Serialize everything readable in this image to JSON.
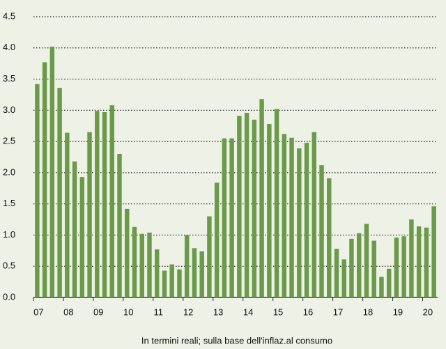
{
  "chart_data": {
    "type": "bar",
    "caption": "In termini reali; sulla base dell'inflaz.al consumo",
    "categories": [
      "07",
      null,
      null,
      null,
      "08",
      null,
      null,
      null,
      "09",
      null,
      null,
      null,
      "10",
      null,
      null,
      null,
      "11",
      null,
      null,
      null,
      "12",
      null,
      null,
      null,
      "13",
      null,
      null,
      null,
      "14",
      null,
      null,
      null,
      "15",
      null,
      null,
      null,
      "16",
      null,
      null,
      null,
      "17",
      null,
      null,
      null,
      "18",
      null,
      null,
      null,
      "19",
      null,
      null,
      null,
      "20",
      null
    ],
    "values": [
      3.42,
      3.77,
      4.02,
      3.36,
      2.64,
      2.18,
      1.93,
      2.65,
      2.99,
      2.97,
      3.08,
      2.3,
      1.42,
      1.13,
      1.02,
      1.04,
      0.77,
      0.43,
      0.53,
      0.45,
      1.0,
      0.79,
      0.74,
      1.3,
      1.84,
      2.55,
      2.55,
      2.91,
      2.96,
      2.85,
      3.18,
      2.78,
      3.02,
      2.62,
      2.56,
      2.39,
      2.48,
      2.65,
      2.12,
      1.91,
      0.78,
      0.61,
      0.94,
      1.03,
      1.18,
      0.91,
      0.33,
      0.46,
      0.96,
      0.98,
      1.25,
      1.14,
      1.12,
      1.46
    ],
    "color": "#6b9a4b",
    "ylim": [
      0,
      4.5
    ],
    "yticks": [
      {
        "value": 0,
        "label": "0.0"
      },
      0.5,
      {
        "value": 1,
        "label": "1.0"
      },
      1.5,
      {
        "value": 2,
        "label": "2.0"
      },
      2.5,
      {
        "value": 3,
        "label": "3.0"
      },
      3.5,
      {
        "value": 4,
        "label": "4.0"
      },
      4.5
    ],
    "grid": true
  }
}
